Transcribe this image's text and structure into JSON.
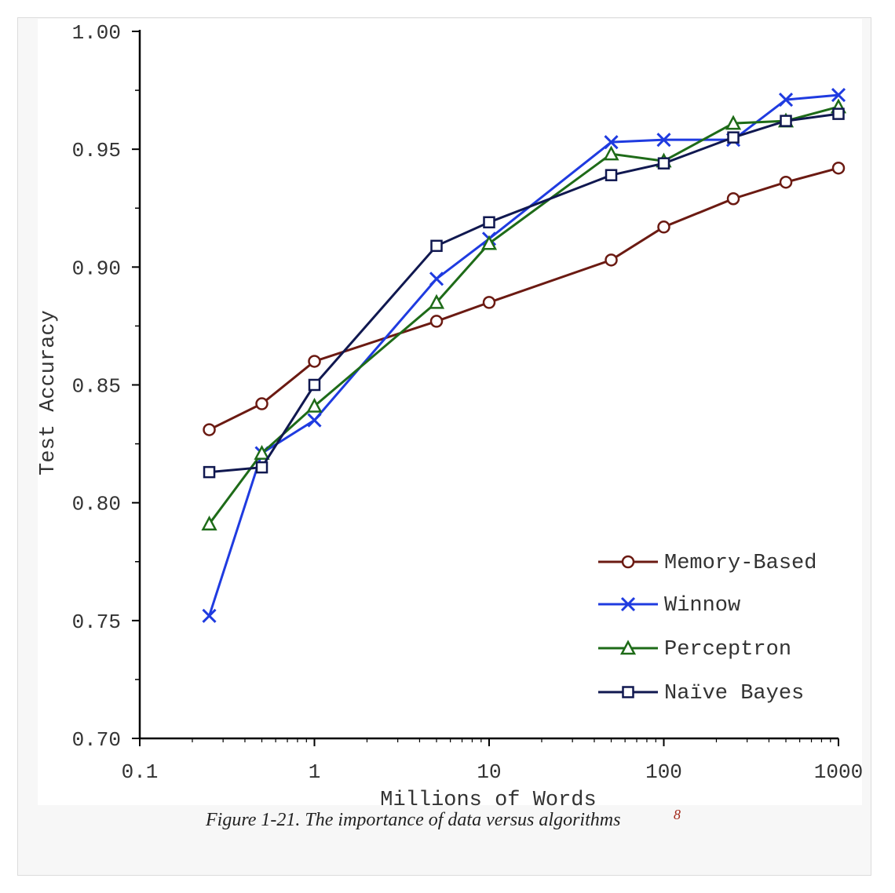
{
  "chart_data": {
    "type": "line",
    "xscale": "log",
    "xlabel": "Millions of Words",
    "ylabel": "Test Accuracy",
    "xlim": [
      0.1,
      1000
    ],
    "ylim": [
      0.7,
      1.0
    ],
    "xticks": [
      "0.1",
      "1",
      "10",
      "100",
      "1000"
    ],
    "xtick_values": [
      0.1,
      1,
      10,
      100,
      1000
    ],
    "yticks": [
      "0.70",
      "0.75",
      "0.80",
      "0.85",
      "0.90",
      "0.95",
      "1.00"
    ],
    "ytick_values": [
      0.7,
      0.75,
      0.8,
      0.85,
      0.9,
      0.95,
      1.0
    ],
    "grid": false,
    "legend_position": "bottom-right",
    "x": [
      0.25,
      0.5,
      1,
      5,
      10,
      50,
      100,
      250,
      500,
      1000
    ],
    "series": [
      {
        "name": "Memory-Based",
        "color": "#6b1a12",
        "marker": "circle",
        "values": [
          0.831,
          0.842,
          0.86,
          0.877,
          0.885,
          0.903,
          0.917,
          0.929,
          0.936,
          0.942
        ]
      },
      {
        "name": "Winnow",
        "color": "#1f3be0",
        "marker": "x",
        "values": [
          0.752,
          0.821,
          0.835,
          0.895,
          0.912,
          0.953,
          0.954,
          0.954,
          0.971,
          0.973
        ]
      },
      {
        "name": "Perceptron",
        "color": "#1e6b18",
        "marker": "triangle",
        "values": [
          0.791,
          0.821,
          0.841,
          0.885,
          0.91,
          0.948,
          0.945,
          0.961,
          0.962,
          0.968
        ]
      },
      {
        "name": "Naïve Bayes",
        "color": "#101850",
        "marker": "square",
        "values": [
          0.813,
          0.815,
          0.85,
          0.909,
          0.919,
          0.939,
          0.944,
          0.955,
          0.962,
          0.965
        ]
      }
    ]
  },
  "caption": {
    "text": "Figure 1-21. The importance of data versus algorithms",
    "footnote": "8"
  }
}
